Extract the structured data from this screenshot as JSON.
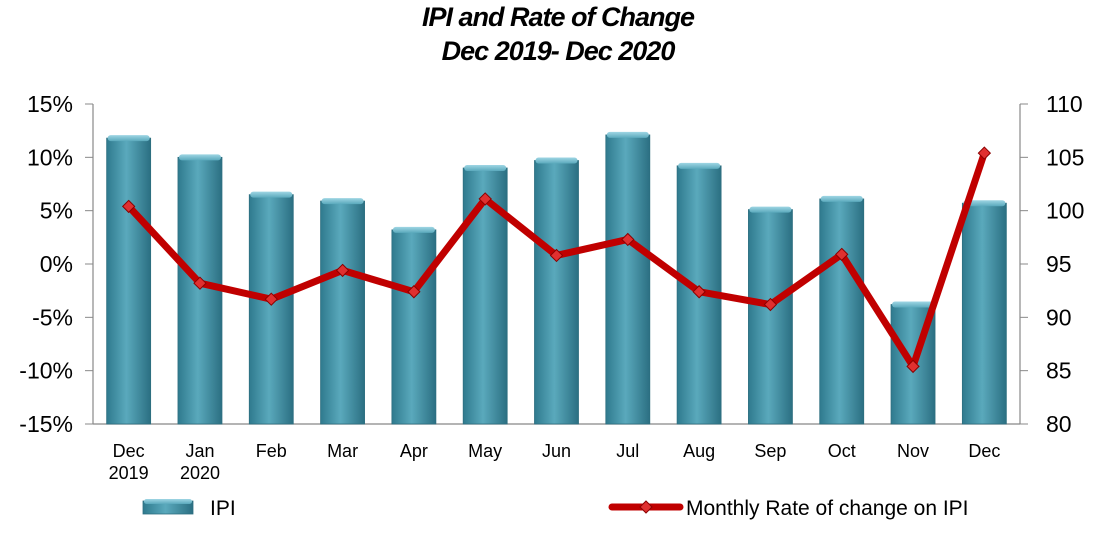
{
  "chart_data": {
    "type": "bar+line",
    "title": "IPI and Rate of Change",
    "subtitle": "Dec 2019- Dec 2020",
    "categories": [
      [
        "Dec",
        "2019"
      ],
      [
        "Jan",
        "2020"
      ],
      [
        "Feb"
      ],
      [
        "Mar"
      ],
      [
        "Apr"
      ],
      [
        "May"
      ],
      [
        "Jun"
      ],
      [
        "Jul"
      ],
      [
        "Aug"
      ],
      [
        "Sep"
      ],
      [
        "Oct"
      ],
      [
        "Nov"
      ],
      [
        "Dec"
      ]
    ],
    "left_axis": {
      "ticks": [
        "15%",
        "10%",
        "5%",
        "0%",
        "-5%",
        "-10%",
        "-15%"
      ],
      "ylim": [
        -15,
        15
      ]
    },
    "right_axis": {
      "ticks": [
        "110",
        "105",
        "100",
        "95",
        "90",
        "85",
        "80"
      ],
      "ylim": [
        80,
        110
      ]
    },
    "series": [
      {
        "name": "IPI",
        "type": "bar",
        "axis": "right",
        "color": "#4a96aa",
        "values": [
          106.8,
          105.0,
          101.5,
          100.9,
          98.2,
          104.0,
          104.7,
          107.1,
          104.2,
          100.1,
          101.1,
          91.2,
          100.7
        ]
      },
      {
        "name": "Monthly Rate of change on IPI",
        "type": "line",
        "axis": "left",
        "color": "#c00000",
        "values": [
          5.4,
          -1.8,
          -3.3,
          -0.6,
          -2.6,
          6.1,
          0.8,
          2.3,
          -2.6,
          -3.8,
          0.9,
          -9.6,
          10.4
        ]
      }
    ],
    "legend": [
      "IPI",
      "Monthly Rate of change on IPI"
    ],
    "legend_position": "bottom"
  }
}
